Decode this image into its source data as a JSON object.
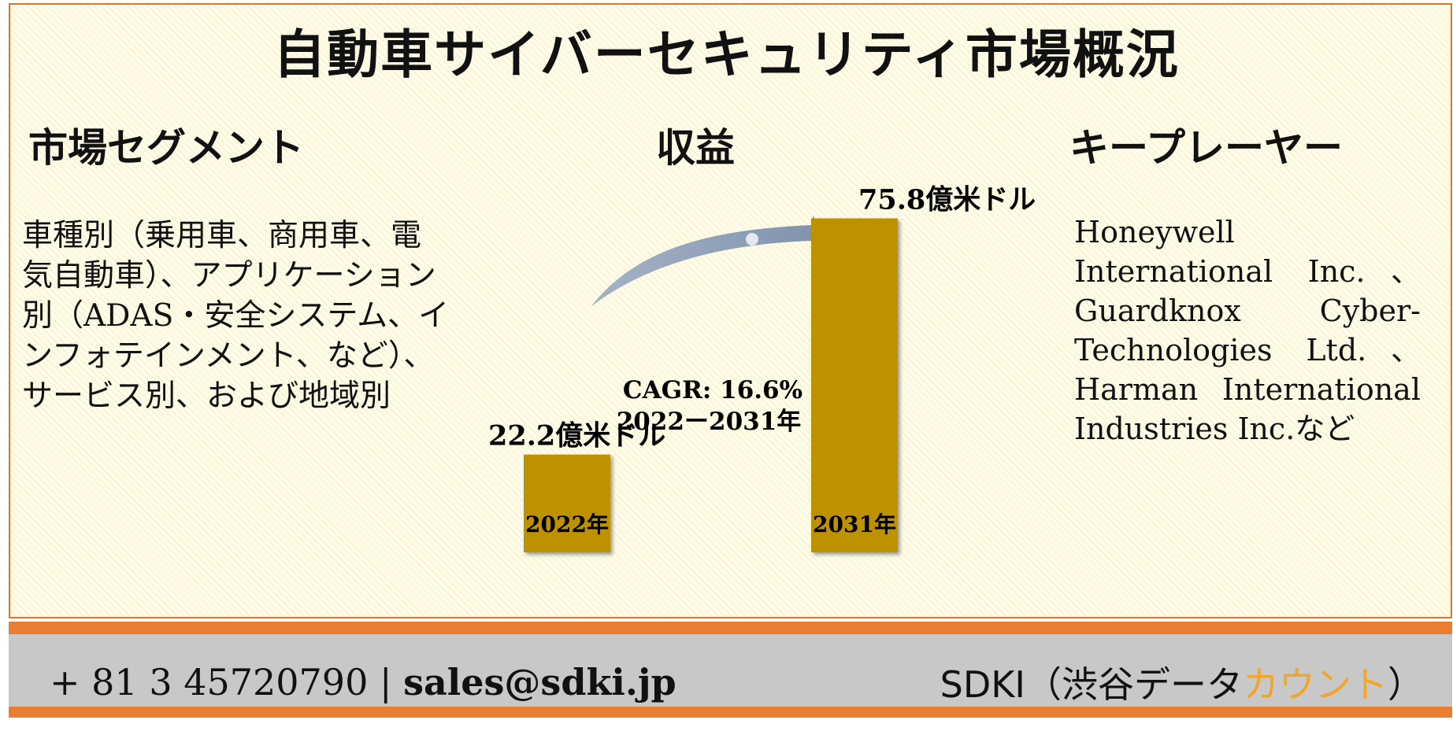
{
  "title": "自動車サイバーセキュリティ市場概況",
  "segments": {
    "heading": "市場セグメント",
    "text": "車種別（乗用車、商用車、電気自動車）、アプリケーション別（ADAS・安全システム、インフォテインメント、など）、サービス別、および地域別"
  },
  "revenue": {
    "heading": "収益",
    "cagr_line1": "CAGR: 16.6%",
    "cagr_line2": "2022ー2031年"
  },
  "players": {
    "heading": "キープレーヤー",
    "text": "Honeywell International Inc.、Guardknox Cyber-Technologies Ltd.、Harman International Industries Inc.など"
  },
  "chart_data": {
    "type": "bar",
    "categories": [
      "2022年",
      "2031年"
    ],
    "values": [
      22.2,
      75.8
    ],
    "value_labels": [
      "22.2億米ドル",
      "75.8億米ドル"
    ],
    "unit": "億米ドル",
    "title": "",
    "xlabel": "",
    "ylabel": "",
    "ylim": [
      0,
      80
    ],
    "grid": false,
    "bar_color": "#be9100",
    "arrow_color": "#8a9bb3"
  },
  "footer": {
    "phone": "+ 81 3 45720790",
    "separator": "|",
    "email": "sales@sdki.jp",
    "brand_main": "SDKI（渋谷データ",
    "brand_accent": "カウント",
    "brand_end": "）",
    "accent_color": "#f3a42a",
    "border_color": "#e97d32"
  }
}
